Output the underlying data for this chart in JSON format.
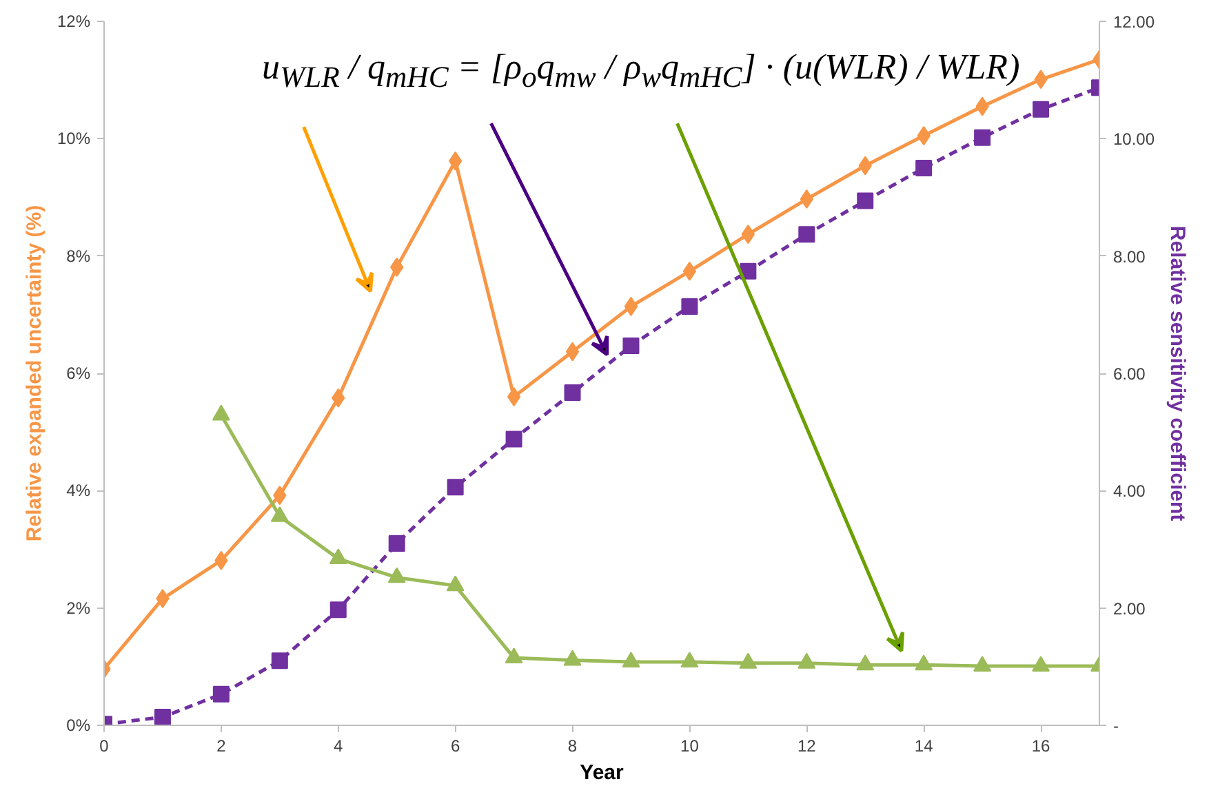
{
  "chart_data": {
    "type": "line",
    "xlabel": "Year",
    "ylabel": "Relative expanded uncertainty (%)",
    "y2label": "Relative sensitivity coefficient",
    "x": [
      0,
      1,
      2,
      3,
      4,
      5,
      6,
      7,
      8,
      9,
      10,
      11,
      12,
      13,
      14,
      15,
      16,
      17
    ],
    "series": [
      {
        "color": "#f79646",
        "marker": "diamond",
        "line_style": "solid",
        "values": [
          0.96,
          2.16,
          2.81,
          3.92,
          5.58,
          7.81,
          9.62,
          5.6,
          6.37,
          7.14,
          7.74,
          8.37,
          8.97,
          9.54,
          10.05,
          10.55,
          11.01,
          11.35
        ]
      },
      {
        "color": "#7030a0",
        "marker": "square",
        "line_style": "dashed",
        "axis": "y2",
        "values": [
          0.02,
          0.14,
          0.53,
          1.1,
          1.97,
          3.1,
          4.06,
          4.88,
          5.67,
          6.47,
          7.14,
          7.74,
          8.37,
          8.94,
          9.5,
          10.02,
          10.5,
          10.87
        ]
      },
      {
        "color": "#9bbb59",
        "marker": "triangle",
        "line_style": "solid",
        "values": [
          null,
          null,
          5.29,
          3.56,
          2.84,
          2.52,
          2.38,
          1.15,
          1.11,
          1.08,
          1.08,
          1.06,
          1.06,
          1.03,
          1.03,
          1.01,
          1.01,
          1.01
        ]
      }
    ],
    "xlim": [
      0,
      17
    ],
    "xticks": [
      0,
      2,
      4,
      6,
      8,
      10,
      12,
      14,
      16
    ],
    "ylim": [
      0,
      12
    ],
    "yticks": [
      {
        "value": 0,
        "label": "0%"
      },
      {
        "value": 2,
        "label": "2%"
      },
      {
        "value": 4,
        "label": "4%"
      },
      {
        "value": 6,
        "label": "6%"
      },
      {
        "value": 8,
        "label": "8%"
      },
      {
        "value": 10,
        "label": "10%"
      },
      {
        "value": 12,
        "label": "12%"
      }
    ],
    "y2lim": [
      0,
      12
    ],
    "y2ticks": [
      {
        "value": 0,
        "label": "-"
      },
      {
        "value": 2,
        "label": "2.00"
      },
      {
        "value": 4,
        "label": "4.00"
      },
      {
        "value": 6,
        "label": "6.00"
      },
      {
        "value": 8,
        "label": "8.00"
      },
      {
        "value": 10,
        "label": "10.00"
      },
      {
        "value": 12,
        "label": "12.00"
      }
    ],
    "annotations": [
      "u$_{WLR}$ / q$_{mHC}$ = [ρ$_{o}$q$_{mw}$ / ρ$_{w}$q$_{mHC}$] · (u(WLR) / WLR)"
    ],
    "grid": false
  }
}
